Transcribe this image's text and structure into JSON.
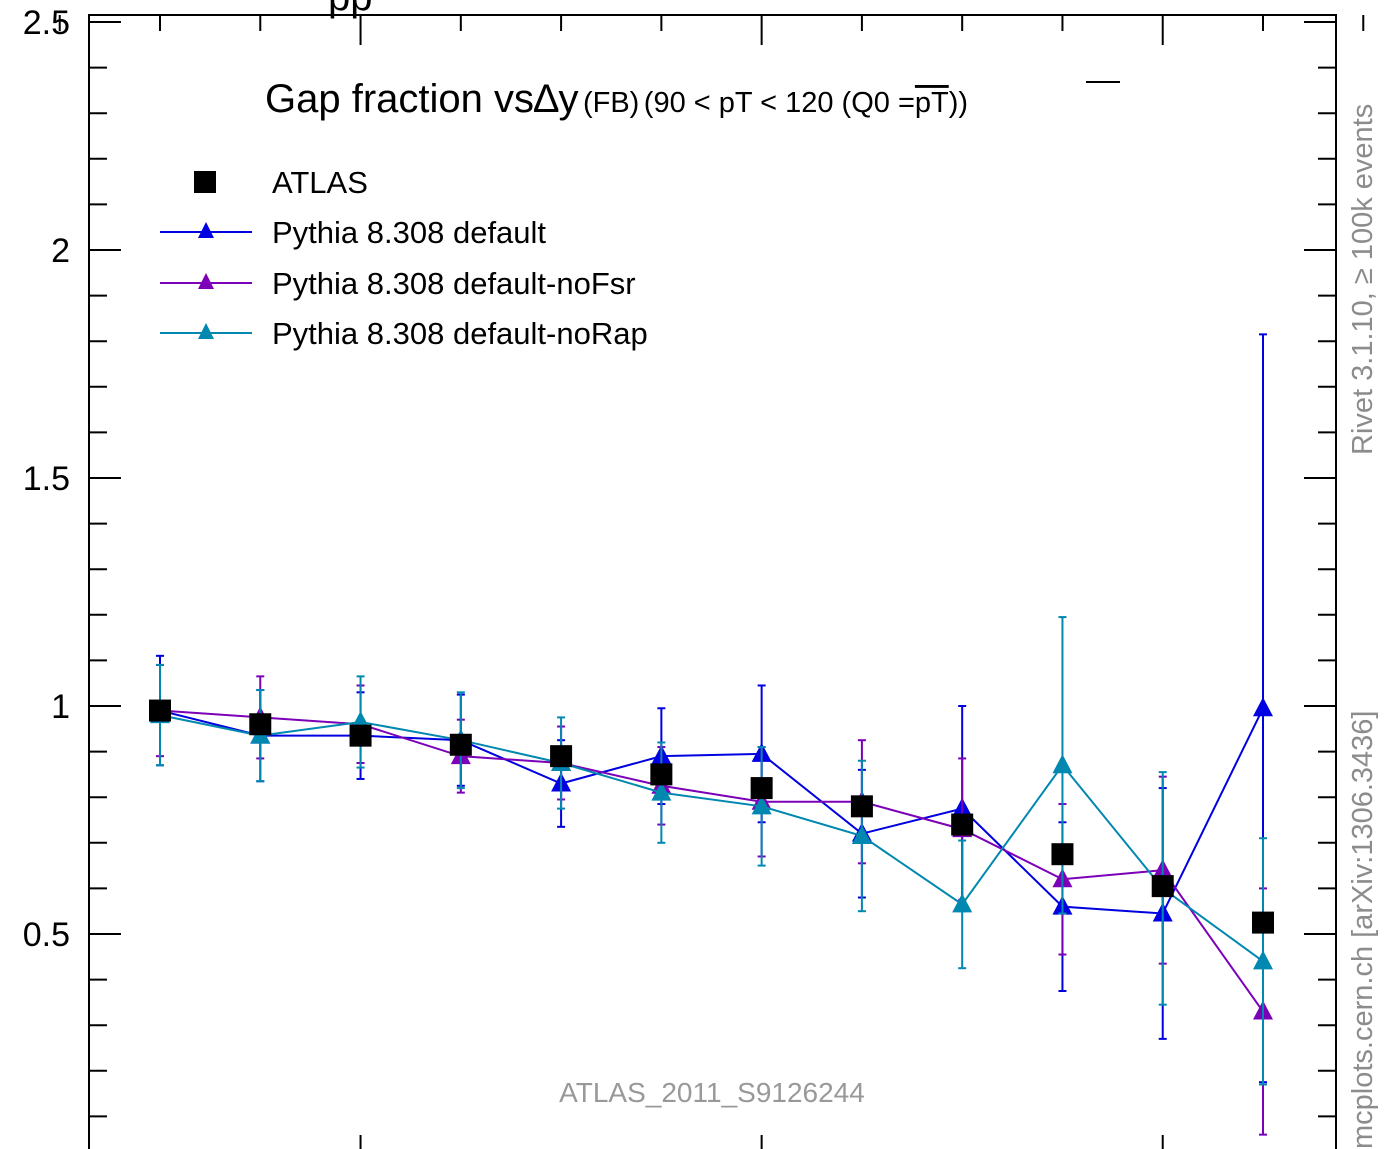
{
  "chart_data": {
    "type": "scatter",
    "title": "Gap fraction vs∆y (FB) (90 < pT < 120 (Q0 =pT))",
    "title_parts": {
      "main": "Gap fraction vs",
      "delta": "∆y",
      "sub1": "(FB)",
      "sub2": "(90 < pT < 120 (Q0 =",
      "overline": "pT",
      "sub3": "))"
    },
    "top_cut_text": "pp",
    "xlabel": "",
    "ylabel": "",
    "xlim": [
      0,
      4.0
    ],
    "ylim": [
      0.0,
      2.5
    ],
    "yticks": [
      0.5,
      1,
      1.5,
      2,
      2.5
    ],
    "ytick_labels": [
      "0.5",
      "1",
      "1.5",
      "2",
      "2.5"
    ],
    "grid": false,
    "legend_position": "top-left",
    "x": [
      0.5,
      0.75,
      1.0,
      1.25,
      1.5,
      1.75,
      2.0,
      2.25,
      2.5,
      2.75,
      3.0,
      3.25
    ],
    "series": [
      {
        "name": "ATLAS",
        "color": "#000000",
        "marker": "square",
        "line": false,
        "values": [
          0.99,
          0.96,
          0.935,
          0.915,
          0.89,
          0.85,
          0.82,
          0.78,
          0.74,
          0.675,
          0.605,
          0.525
        ],
        "err": [
          0.0,
          0.0,
          0.0,
          0.0,
          0.0,
          0.0,
          0.0,
          0.0,
          0.0,
          0.0,
          0.0,
          0.0
        ]
      },
      {
        "name": "Pythia 8.308 default",
        "color": "#0000e0",
        "marker": "triangle",
        "line": true,
        "values": [
          0.99,
          0.935,
          0.935,
          0.925,
          0.83,
          0.89,
          0.895,
          0.72,
          0.775,
          0.56,
          0.545,
          0.995
        ],
        "err": [
          0.12,
          0.1,
          0.095,
          0.1,
          0.095,
          0.105,
          0.15,
          0.14,
          0.225,
          0.185,
          0.275,
          0.82
        ]
      },
      {
        "name": "Pythia 8.308 default-noFsr",
        "color": "#7b00b8",
        "marker": "triangle",
        "line": true,
        "values": [
          0.99,
          0.975,
          0.96,
          0.89,
          0.875,
          0.825,
          0.79,
          0.79,
          0.73,
          0.62,
          0.64,
          0.33
        ],
        "err": [
          0.1,
          0.09,
          0.085,
          0.08,
          0.08,
          0.085,
          0.12,
          0.135,
          0.155,
          0.165,
          0.205,
          0.27
        ]
      },
      {
        "name": "Pythia 8.308 default-noRap",
        "color": "#0088b0",
        "marker": "triangle",
        "line": true,
        "values": [
          0.98,
          0.935,
          0.965,
          0.925,
          0.875,
          0.81,
          0.78,
          0.715,
          0.565,
          0.87,
          0.6,
          0.44
        ],
        "err": [
          0.11,
          0.1,
          0.1,
          0.105,
          0.1,
          0.11,
          0.13,
          0.165,
          0.14,
          0.325,
          0.255,
          0.27
        ]
      }
    ]
  },
  "watermark": "ATLAS_2011_S9126244",
  "side_labels": {
    "rivet": "Rivet 3.1.10, ≥ 100k events",
    "mcplots": "mcplots.cern.ch [arXiv:1306.3436]"
  }
}
